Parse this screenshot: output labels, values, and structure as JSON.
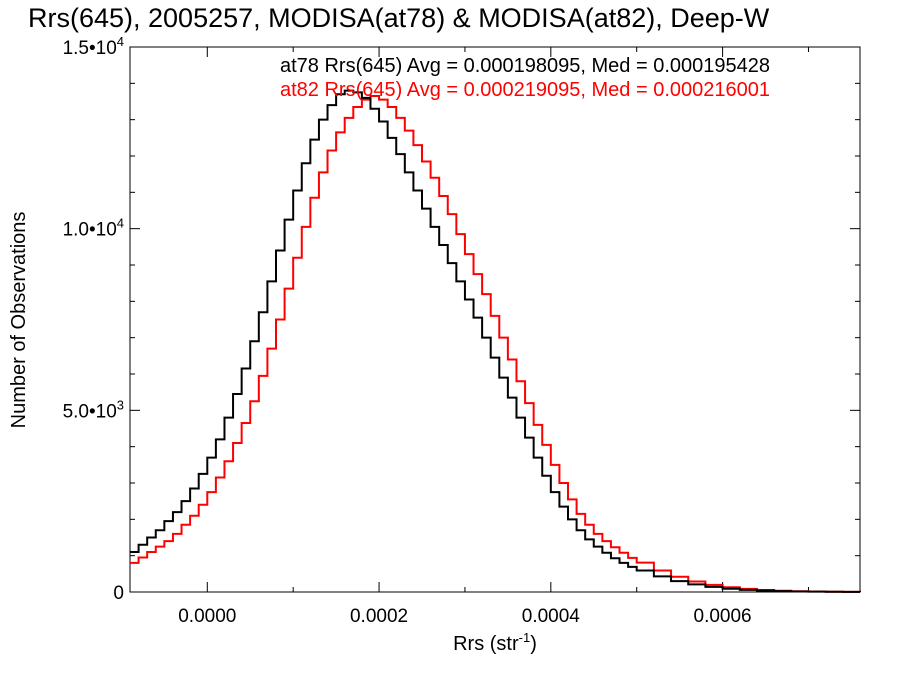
{
  "chart_data": {
    "type": "line",
    "title": "Rrs(645), 2005257, MODISA(at78) & MODISA(at82), Deep-W",
    "xlabel": "Rrs (str",
    "xlabel_exponent": "-1",
    "xlabel_close": ")",
    "ylabel": "Number of Observations",
    "xlim": [
      -9e-05,
      0.00076
    ],
    "ylim": [
      0,
      15000
    ],
    "grid": false,
    "x_ticks": [
      {
        "value": 0.0,
        "label": "0.0000"
      },
      {
        "value": 0.0002,
        "label": "0.0002"
      },
      {
        "value": 0.0004,
        "label": "0.0004"
      },
      {
        "value": 0.0006,
        "label": "0.0006"
      }
    ],
    "y_ticks": [
      {
        "value": 0,
        "mant": "0",
        "exp": ""
      },
      {
        "value": 5000,
        "mant": "5.0•10",
        "exp": "3"
      },
      {
        "value": 10000,
        "mant": "1.0•10",
        "exp": "4"
      },
      {
        "value": 15000,
        "mant": "1.5•10",
        "exp": "4"
      }
    ],
    "legend_position": "top-right",
    "series": [
      {
        "name": "at78",
        "color": "#000000",
        "annotation": "at78 Rrs(645) Avg = 0.000198095, Med = 0.000195428",
        "x": [
          -9e-05,
          -8e-05,
          -7e-05,
          -6e-05,
          -5e-05,
          -4e-05,
          -3e-05,
          -2e-05,
          -1e-05,
          0.0,
          1e-05,
          2e-05,
          3e-05,
          4e-05,
          5e-05,
          6e-05,
          7e-05,
          8e-05,
          9e-05,
          0.0001,
          0.00011,
          0.00012,
          0.00013,
          0.00014,
          0.00015,
          0.00016,
          0.00017,
          0.00018,
          0.00019,
          0.0002,
          0.00021,
          0.00022,
          0.00023,
          0.00024,
          0.00025,
          0.00026,
          0.00027,
          0.00028,
          0.00029,
          0.0003,
          0.00031,
          0.00032,
          0.00033,
          0.00034,
          0.00035,
          0.00036,
          0.00037,
          0.00038,
          0.00039,
          0.0004,
          0.00041,
          0.00042,
          0.00043,
          0.00044,
          0.00045,
          0.00046,
          0.00047,
          0.00048,
          0.00049,
          0.0005,
          0.00052,
          0.00054,
          0.00056,
          0.00058,
          0.0006,
          0.00062,
          0.00064,
          0.00066,
          0.00068,
          0.0007,
          0.00072,
          0.00074,
          0.00076
        ],
        "y": [
          1100,
          1300,
          1500,
          1700,
          1950,
          2200,
          2500,
          2850,
          3250,
          3700,
          4200,
          4800,
          5450,
          6150,
          6900,
          7700,
          8550,
          9400,
          10250,
          11050,
          11800,
          12450,
          13000,
          13400,
          13700,
          13800,
          13750,
          13600,
          13300,
          12950,
          12500,
          12050,
          11550,
          11050,
          10550,
          10050,
          9550,
          9050,
          8550,
          8050,
          7550,
          7000,
          6450,
          5900,
          5350,
          4800,
          4250,
          3700,
          3200,
          2750,
          2350,
          2000,
          1700,
          1450,
          1250,
          1080,
          930,
          800,
          690,
          590,
          430,
          300,
          210,
          140,
          90,
          60,
          40,
          25,
          15,
          10,
          6,
          4,
          2
        ]
      },
      {
        "name": "at82",
        "color": "#ff0000",
        "annotation": "at82 Rrs(645) Avg = 0.000219095, Med = 0.000216001",
        "x": [
          -9e-05,
          -8e-05,
          -7e-05,
          -6e-05,
          -5e-05,
          -4e-05,
          -3e-05,
          -2e-05,
          -1e-05,
          0.0,
          1e-05,
          2e-05,
          3e-05,
          4e-05,
          5e-05,
          6e-05,
          7e-05,
          8e-05,
          9e-05,
          0.0001,
          0.00011,
          0.00012,
          0.00013,
          0.00014,
          0.00015,
          0.00016,
          0.00017,
          0.00018,
          0.00019,
          0.0002,
          0.00021,
          0.00022,
          0.00023,
          0.00024,
          0.00025,
          0.00026,
          0.00027,
          0.00028,
          0.00029,
          0.0003,
          0.00031,
          0.00032,
          0.00033,
          0.00034,
          0.00035,
          0.00036,
          0.00037,
          0.00038,
          0.00039,
          0.0004,
          0.00041,
          0.00042,
          0.00043,
          0.00044,
          0.00045,
          0.00046,
          0.00047,
          0.00048,
          0.00049,
          0.0005,
          0.00052,
          0.00054,
          0.00056,
          0.00058,
          0.0006,
          0.00062,
          0.00064,
          0.00066,
          0.00068,
          0.0007,
          0.00072,
          0.00074,
          0.00076
        ],
        "y": [
          800,
          950,
          1100,
          1250,
          1400,
          1600,
          1850,
          2100,
          2400,
          2750,
          3150,
          3600,
          4100,
          4650,
          5250,
          5950,
          6700,
          7500,
          8350,
          9200,
          10050,
          10850,
          11550,
          12150,
          12650,
          13050,
          13350,
          13550,
          13650,
          13550,
          13350,
          13050,
          12700,
          12300,
          11850,
          11400,
          10900,
          10400,
          9850,
          9300,
          8750,
          8200,
          7600,
          7000,
          6400,
          5800,
          5200,
          4600,
          4050,
          3500,
          3000,
          2550,
          2150,
          1850,
          1600,
          1400,
          1230,
          1080,
          940,
          810,
          590,
          420,
          290,
          195,
          130,
          85,
          55,
          35,
          22,
          14,
          8,
          5,
          3
        ]
      }
    ]
  }
}
